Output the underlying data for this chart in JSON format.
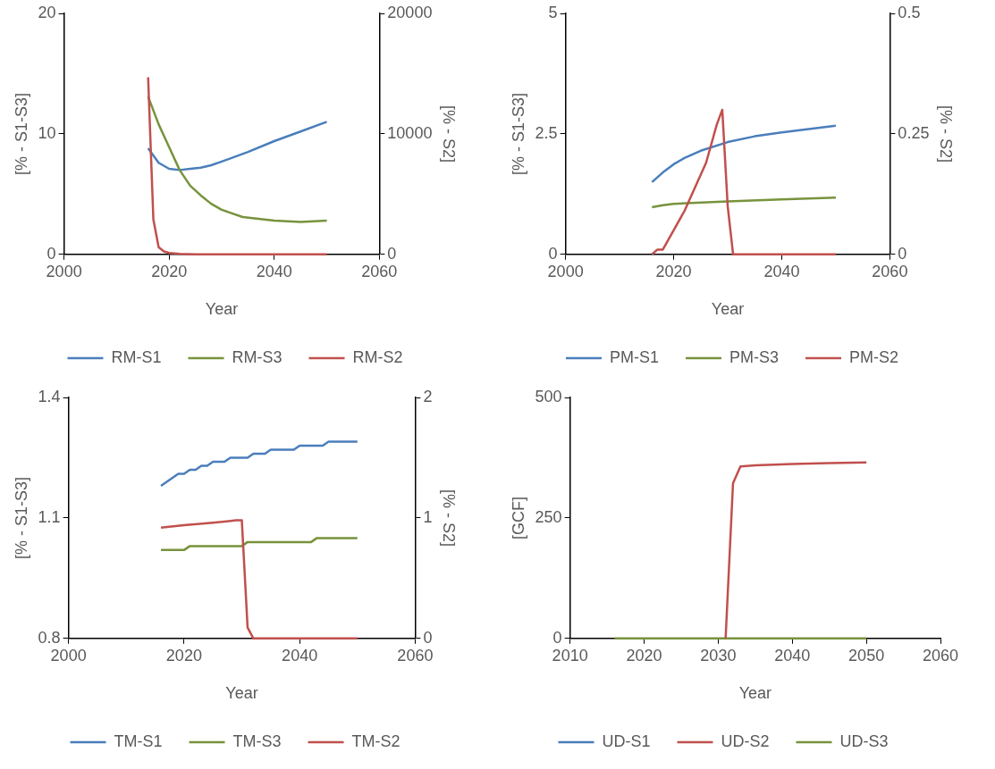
{
  "chart_data": [
    {
      "type": "line",
      "xlabel": "Year",
      "ylabel": "[% - S1-S3]",
      "y2label": "[% - S2]",
      "xlim": [
        2000,
        2060
      ],
      "xticks": [
        2000,
        2020,
        2040,
        2060
      ],
      "ylim": [
        0,
        20
      ],
      "yticks": [
        0,
        10,
        20
      ],
      "y2lim": [
        0,
        20000
      ],
      "y2ticks": [
        0,
        10000,
        20000
      ],
      "grid": false,
      "legend": "bottom",
      "marker": "none",
      "series": [
        {
          "name": "RM-S1",
          "color": "#4a7ebb",
          "x": [
            2016,
            2018,
            2020,
            2022,
            2024,
            2026,
            2028,
            2030,
            2035,
            2040,
            2045,
            2050
          ],
          "values": [
            8.8,
            7.6,
            7.1,
            7.0,
            7.1,
            7.2,
            7.4,
            7.7,
            8.5,
            9.4,
            10.2,
            11.0
          ]
        },
        {
          "name": "RM-S3",
          "color": "#77933c",
          "x": [
            2016,
            2018,
            2020,
            2022,
            2024,
            2026,
            2028,
            2030,
            2034,
            2040,
            2045,
            2050
          ],
          "values": [
            13.1,
            10.8,
            8.9,
            7.0,
            5.7,
            4.9,
            4.2,
            3.7,
            3.1,
            2.8,
            2.7,
            2.8
          ]
        },
        {
          "name": "RM-S2",
          "color": "#c0504d",
          "axis": "y2",
          "x": [
            2016,
            2017,
            2018,
            2019,
            2020,
            2022,
            2025,
            2030,
            2050
          ],
          "values": [
            14700,
            2900,
            600,
            250,
            120,
            50,
            0,
            0,
            0
          ]
        }
      ]
    },
    {
      "type": "line",
      "xlabel": "Year",
      "ylabel": "[% - S1-S3]",
      "y2label": "[% - S2]",
      "xlim": [
        2000,
        2060
      ],
      "xticks": [
        2000,
        2020,
        2040,
        2060
      ],
      "ylim": [
        0,
        5
      ],
      "yticks": [
        0,
        2.5,
        5
      ],
      "y2lim": [
        0,
        0.5
      ],
      "y2ticks": [
        0,
        0.25,
        0.5
      ],
      "grid": false,
      "legend": "bottom",
      "marker": "none",
      "series": [
        {
          "name": "PM-S1",
          "color": "#4a7ebb",
          "x": [
            2016,
            2018,
            2020,
            2022,
            2025,
            2030,
            2035,
            2040,
            2045,
            2050
          ],
          "values": [
            1.5,
            1.7,
            1.87,
            2.0,
            2.15,
            2.33,
            2.45,
            2.53,
            2.6,
            2.67
          ]
        },
        {
          "name": "PM-S3",
          "color": "#77933c",
          "x": [
            2016,
            2018,
            2020,
            2030,
            2040,
            2050
          ],
          "values": [
            0.98,
            1.02,
            1.05,
            1.1,
            1.14,
            1.18
          ]
        },
        {
          "name": "PM-S2",
          "color": "#c0504d",
          "axis": "y2",
          "x": [
            2016,
            2017,
            2018,
            2020,
            2022,
            2024,
            2026,
            2028,
            2029,
            2030,
            2031,
            2050
          ],
          "values": [
            0,
            0.01,
            0.01,
            0.05,
            0.09,
            0.14,
            0.19,
            0.27,
            0.3,
            0.1,
            0,
            0
          ]
        }
      ]
    },
    {
      "type": "line",
      "xlabel": "Year",
      "ylabel": "[% - S1-S3]",
      "y2label": "[% - S2]",
      "xlim": [
        2000,
        2060
      ],
      "xticks": [
        2000,
        2020,
        2040,
        2060
      ],
      "ylim": [
        0.8,
        1.4
      ],
      "yticks": [
        0.8,
        1.1,
        1.4
      ],
      "y2lim": [
        0,
        2
      ],
      "y2ticks": [
        0,
        1,
        2
      ],
      "grid": false,
      "legend": "bottom",
      "marker": "none",
      "series": [
        {
          "name": "TM-S1",
          "color": "#4a7ebb",
          "x": [
            2016,
            2019,
            2020,
            2021,
            2022,
            2023,
            2024,
            2025,
            2027,
            2028,
            2031,
            2032,
            2034,
            2035,
            2039,
            2040,
            2044,
            2045,
            2050
          ],
          "values": [
            1.18,
            1.21,
            1.21,
            1.22,
            1.22,
            1.23,
            1.23,
            1.24,
            1.24,
            1.25,
            1.25,
            1.26,
            1.26,
            1.27,
            1.27,
            1.28,
            1.28,
            1.29,
            1.29
          ]
        },
        {
          "name": "TM-S3",
          "color": "#77933c",
          "x": [
            2016,
            2020,
            2021,
            2030,
            2031,
            2042,
            2043,
            2050
          ],
          "values": [
            1.02,
            1.02,
            1.03,
            1.03,
            1.04,
            1.04,
            1.05,
            1.05
          ]
        },
        {
          "name": "TM-S2",
          "color": "#c0504d",
          "axis": "y2",
          "x": [
            2016,
            2020,
            2025,
            2029,
            2030,
            2031,
            2032,
            2050
          ],
          "values": [
            0.92,
            0.94,
            0.96,
            0.98,
            0.98,
            0.09,
            0,
            0
          ]
        }
      ]
    },
    {
      "type": "line",
      "xlabel": "Year",
      "ylabel": "[GCF]",
      "xlim": [
        2010,
        2060
      ],
      "xticks": [
        2010,
        2020,
        2030,
        2040,
        2050,
        2060
      ],
      "ylim": [
        0,
        500
      ],
      "yticks": [
        0,
        250,
        500
      ],
      "grid": false,
      "legend": "bottom",
      "marker": "none",
      "series": [
        {
          "name": "UD-S1",
          "color": "#4a7ebb"
        },
        {
          "name": "UD-S2",
          "color": "#c0504d",
          "x": [
            2031,
            2032,
            2033,
            2035,
            2040,
            2045,
            2050
          ],
          "values": [
            0,
            322,
            357,
            359,
            362,
            364,
            365
          ]
        },
        {
          "name": "UD-S3",
          "color": "#77933c",
          "x": [
            2016,
            2050
          ],
          "values": [
            0,
            0
          ]
        }
      ]
    }
  ]
}
